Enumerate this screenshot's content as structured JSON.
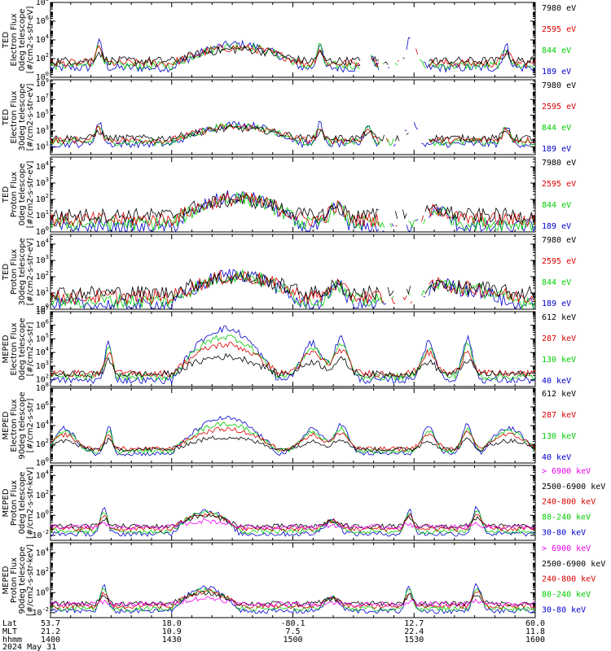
{
  "chart_data": {
    "type": "line",
    "x_axis": {
      "rows": [
        {
          "label": "Lat",
          "values": [
            "53.7",
            "18.0",
            "-80.1",
            "12.7",
            "60.0"
          ]
        },
        {
          "label": "MLT",
          "values": [
            "21.2",
            "10.9",
            "7.5",
            "22.4",
            "11.8"
          ]
        },
        {
          "label": "hhmm",
          "values": [
            "1400",
            "1430",
            "1500",
            "1530",
            "1600"
          ]
        }
      ],
      "date": "2024 May 31",
      "time_range": [
        "14:00",
        "16:00"
      ]
    },
    "panels": [
      {
        "ylabel": [
          "TED",
          "Electron Flux",
          "0deg telescope",
          "[#/cm2-s-str-eV]"
        ],
        "y_ticks": [
          {
            "exp": 8,
            "label": "10",
            "sup": "8"
          },
          {
            "exp": 6,
            "label": "10",
            "sup": "6"
          },
          {
            "exp": 4,
            "label": "10",
            "sup": "4"
          },
          {
            "exp": 2,
            "label": "10",
            "sup": "2"
          },
          {
            "exp": 0,
            "label": "10",
            "sup": "0"
          }
        ],
        "ylim_log10": [
          0,
          8
        ],
        "series": [
          {
            "name": "7980 eV",
            "color": "#000000"
          },
          {
            "name": "2595 eV",
            "color": "#dd0000"
          },
          {
            "name": "844 eV",
            "color": "#00cc00"
          },
          {
            "name": "189 eV",
            "color": "#0000cc"
          }
        ]
      },
      {
        "ylabel": [
          "TED",
          "Electron Flux",
          "30deg telescope",
          "[#/cm2-s-str-eV]"
        ],
        "y_ticks": [
          {
            "exp": 9,
            "label": "10",
            "sup": "9"
          },
          {
            "exp": 7,
            "label": "10",
            "sup": "7"
          },
          {
            "exp": 5,
            "label": "10",
            "sup": "5"
          },
          {
            "exp": 3,
            "label": "10",
            "sup": "3"
          },
          {
            "exp": 1,
            "label": "10",
            "sup": "1"
          }
        ],
        "ylim_log10": [
          0,
          9.5
        ],
        "series": [
          {
            "name": "7980 eV",
            "color": "#000000"
          },
          {
            "name": "2595 eV",
            "color": "#dd0000"
          },
          {
            "name": "844 eV",
            "color": "#00cc00"
          },
          {
            "name": "189 eV",
            "color": "#0000cc"
          }
        ]
      },
      {
        "ylabel": [
          "TED",
          "Proton Flux",
          "0deg telescope",
          "[#/cm2-s-str-eV]"
        ],
        "y_ticks": [
          {
            "exp": 4,
            "label": "10",
            "sup": "4"
          },
          {
            "exp": 3,
            "label": "10",
            "sup": "3"
          },
          {
            "exp": 2,
            "label": "10",
            "sup": "2"
          },
          {
            "exp": 1,
            "label": "10",
            "sup": "1"
          },
          {
            "exp": 0,
            "label": "10",
            "sup": "0"
          }
        ],
        "ylim_log10": [
          0,
          4.6
        ],
        "series": [
          {
            "name": "7980 eV",
            "color": "#000000"
          },
          {
            "name": "2595 eV",
            "color": "#dd0000"
          },
          {
            "name": "844 eV",
            "color": "#00cc00"
          },
          {
            "name": "189 eV",
            "color": "#0000cc"
          }
        ]
      },
      {
        "ylabel": [
          "TED",
          "Proton Flux",
          "30deg telescope",
          "[#/cm2-s-str-eV]"
        ],
        "y_ticks": [
          {
            "exp": 4,
            "label": "10",
            "sup": "4"
          },
          {
            "exp": 3,
            "label": "10",
            "sup": "3"
          },
          {
            "exp": 2,
            "label": "10",
            "sup": "2"
          },
          {
            "exp": 1,
            "label": "10",
            "sup": "1"
          },
          {
            "exp": 0,
            "label": "10",
            "sup": "0"
          }
        ],
        "ylim_log10": [
          0,
          4.6
        ],
        "series": [
          {
            "name": "7980 eV",
            "color": "#000000"
          },
          {
            "name": "2595 eV",
            "color": "#dd0000"
          },
          {
            "name": "844 eV",
            "color": "#00cc00"
          },
          {
            "name": "189 eV",
            "color": "#0000cc"
          }
        ]
      },
      {
        "ylabel": [
          "MEPED",
          "Electron Flux",
          "0deg telescope",
          "[#/cm2-s-str]"
        ],
        "y_ticks": [
          {
            "exp": 7,
            "label": "10",
            "sup": "7"
          },
          {
            "exp": 6,
            "label": "10",
            "sup": "6"
          },
          {
            "exp": 5,
            "label": "10",
            "sup": "5"
          },
          {
            "exp": 4,
            "label": "10",
            "sup": "4"
          },
          {
            "exp": 3,
            "label": "10",
            "sup": "3"
          },
          {
            "exp": 2,
            "label": "10",
            "sup": "2"
          }
        ],
        "ylim_log10": [
          1.5,
          7
        ],
        "series": [
          {
            "name": "612 keV",
            "color": "#000000"
          },
          {
            "name": "287 keV",
            "color": "#dd0000"
          },
          {
            "name": "130 keV",
            "color": "#00cc00"
          },
          {
            "name": "40 keV",
            "color": "#0000cc"
          }
        ]
      },
      {
        "ylabel": [
          "MEPED",
          "Electron Flux",
          "90deg telescope",
          "[#/cm2-s-str]"
        ],
        "y_ticks": [
          {
            "exp": 8,
            "label": "10",
            "sup": "8"
          },
          {
            "exp": 6,
            "label": "10",
            "sup": "6"
          },
          {
            "exp": 4,
            "label": "10",
            "sup": "4"
          },
          {
            "exp": 2,
            "label": "10",
            "sup": "2"
          },
          {
            "exp": 0,
            "label": "10",
            "sup": "0"
          }
        ],
        "ylim_log10": [
          0,
          8
        ],
        "series": [
          {
            "name": "612 keV",
            "color": "#000000"
          },
          {
            "name": "287 keV",
            "color": "#dd0000"
          },
          {
            "name": "130 keV",
            "color": "#00cc00"
          },
          {
            "name": "40 keV",
            "color": "#0000cc"
          }
        ]
      },
      {
        "ylabel": [
          "MEPED",
          "Proton Flux",
          "0deg telescope",
          "[#/cm2-s-str-keV]"
        ],
        "y_ticks": [
          {
            "exp": 4,
            "label": "10",
            "sup": "4"
          },
          {
            "exp": 2,
            "label": "10",
            "sup": "2"
          },
          {
            "exp": 0,
            "label": "10",
            "sup": "0"
          },
          {
            "exp": -2,
            "label": "10",
            "sup": "-2"
          }
        ],
        "ylim_log10": [
          -2.5,
          5
        ],
        "series": [
          {
            "name": "> 6900 keV",
            "color": "#ee00ee"
          },
          {
            "name": "2500-6900 keV",
            "color": "#000000"
          },
          {
            "name": "240-800 keV",
            "color": "#dd0000"
          },
          {
            "name": "80-240 keV",
            "color": "#00cc00"
          },
          {
            "name": "30-80 keV",
            "color": "#0000cc"
          }
        ]
      },
      {
        "ylabel": [
          "MEPED",
          "Proton Flux",
          "90deg telescope",
          "[#/cm2-s-str-keV]"
        ],
        "y_ticks": [
          {
            "exp": 4,
            "label": "10",
            "sup": "4"
          },
          {
            "exp": 2,
            "label": "10",
            "sup": "2"
          },
          {
            "exp": 0,
            "label": "10",
            "sup": "0"
          },
          {
            "exp": -2,
            "label": "10",
            "sup": "-2"
          }
        ],
        "ylim_log10": [
          -2.5,
          5
        ],
        "series": [
          {
            "name": "> 6900 keV",
            "color": "#ee00ee"
          },
          {
            "name": "2500-6900 keV",
            "color": "#000000"
          },
          {
            "name": "240-800 keV",
            "color": "#dd0000"
          },
          {
            "name": "80-240 keV",
            "color": "#00cc00"
          },
          {
            "name": "30-80 keV",
            "color": "#0000cc"
          }
        ]
      }
    ]
  }
}
